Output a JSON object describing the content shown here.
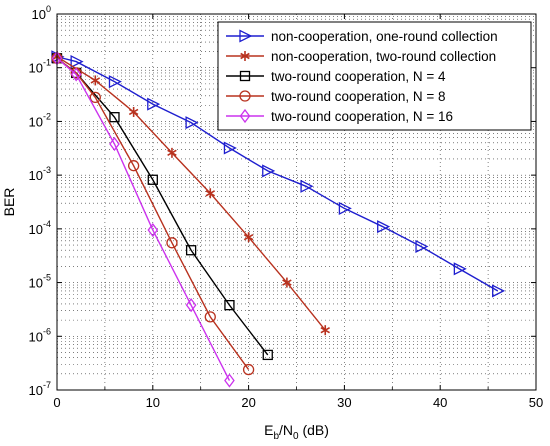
{
  "chart_data": {
    "type": "line",
    "xlabel_main": "E",
    "xlabel_sub": "b",
    "xlabel_mid": "/N",
    "xlabel_sub2": "0",
    "xlabel_unit": " (dB)",
    "ylabel": "BER",
    "xlim": [
      0,
      50
    ],
    "ylim": [
      1e-07,
      1
    ],
    "yscale": "log",
    "grid": true,
    "legend_position": "top-right",
    "x_ticks": [
      {
        "value": 0,
        "label": "0"
      },
      {
        "value": 10,
        "label": "10"
      },
      {
        "value": 20,
        "label": "20"
      },
      {
        "value": 30,
        "label": "30"
      },
      {
        "value": 40,
        "label": "40"
      },
      {
        "value": 50,
        "label": "50"
      }
    ],
    "y_ticks": [
      {
        "value": 1,
        "base": "10",
        "exp": "0"
      },
      {
        "value": 0.1,
        "base": "10",
        "exp": "-1"
      },
      {
        "value": 0.01,
        "base": "10",
        "exp": "-2"
      },
      {
        "value": 0.001,
        "base": "10",
        "exp": "-3"
      },
      {
        "value": 0.0001,
        "base": "10",
        "exp": "-4"
      },
      {
        "value": 1e-05,
        "base": "10",
        "exp": "-5"
      },
      {
        "value": 1e-06,
        "base": "10",
        "exp": "-6"
      },
      {
        "value": 1e-07,
        "base": "10",
        "exp": "-7"
      }
    ],
    "series": [
      {
        "name": "non-cooperation, one-round collection",
        "color": "#1f1fcf",
        "marker": "triangle-right",
        "x": [
          0,
          2,
          6,
          10,
          14,
          18,
          22,
          26,
          30,
          34,
          38,
          42,
          46
        ],
        "y": [
          0.16,
          0.13,
          0.055,
          0.021,
          0.0095,
          0.0032,
          0.0012,
          0.00062,
          0.00024,
          0.00011,
          4.7e-05,
          1.8e-05,
          7e-06
        ]
      },
      {
        "name": "non-cooperation, two-round collection",
        "color": "#b8321f",
        "marker": "star",
        "x": [
          0,
          4,
          8,
          12,
          16,
          20,
          24,
          28
        ],
        "y": [
          0.16,
          0.058,
          0.015,
          0.0026,
          0.00046,
          7e-05,
          1e-05,
          1.3e-06
        ]
      },
      {
        "name": "two-round cooperation, N = 4",
        "color": "#000000",
        "marker": "square",
        "x": [
          0,
          2,
          6,
          10,
          14,
          18,
          22
        ],
        "y": [
          0.15,
          0.08,
          0.012,
          0.00082,
          4e-05,
          3.8e-06,
          4.5e-07
        ]
      },
      {
        "name": "two-round cooperation, N = 8",
        "color": "#b8321f",
        "marker": "circle",
        "x": [
          0,
          2,
          4,
          8,
          12,
          16,
          20
        ],
        "y": [
          0.15,
          0.08,
          0.028,
          0.0015,
          5.5e-05,
          2.3e-06,
          2.4e-07
        ]
      },
      {
        "name": "two-round cooperation, N = 16",
        "color": "#cc33ee",
        "marker": "diamond",
        "x": [
          0,
          2,
          6,
          10,
          14,
          18
        ],
        "y": [
          0.15,
          0.075,
          0.0038,
          9.5e-05,
          3.8e-06,
          1.5e-07
        ]
      }
    ]
  }
}
